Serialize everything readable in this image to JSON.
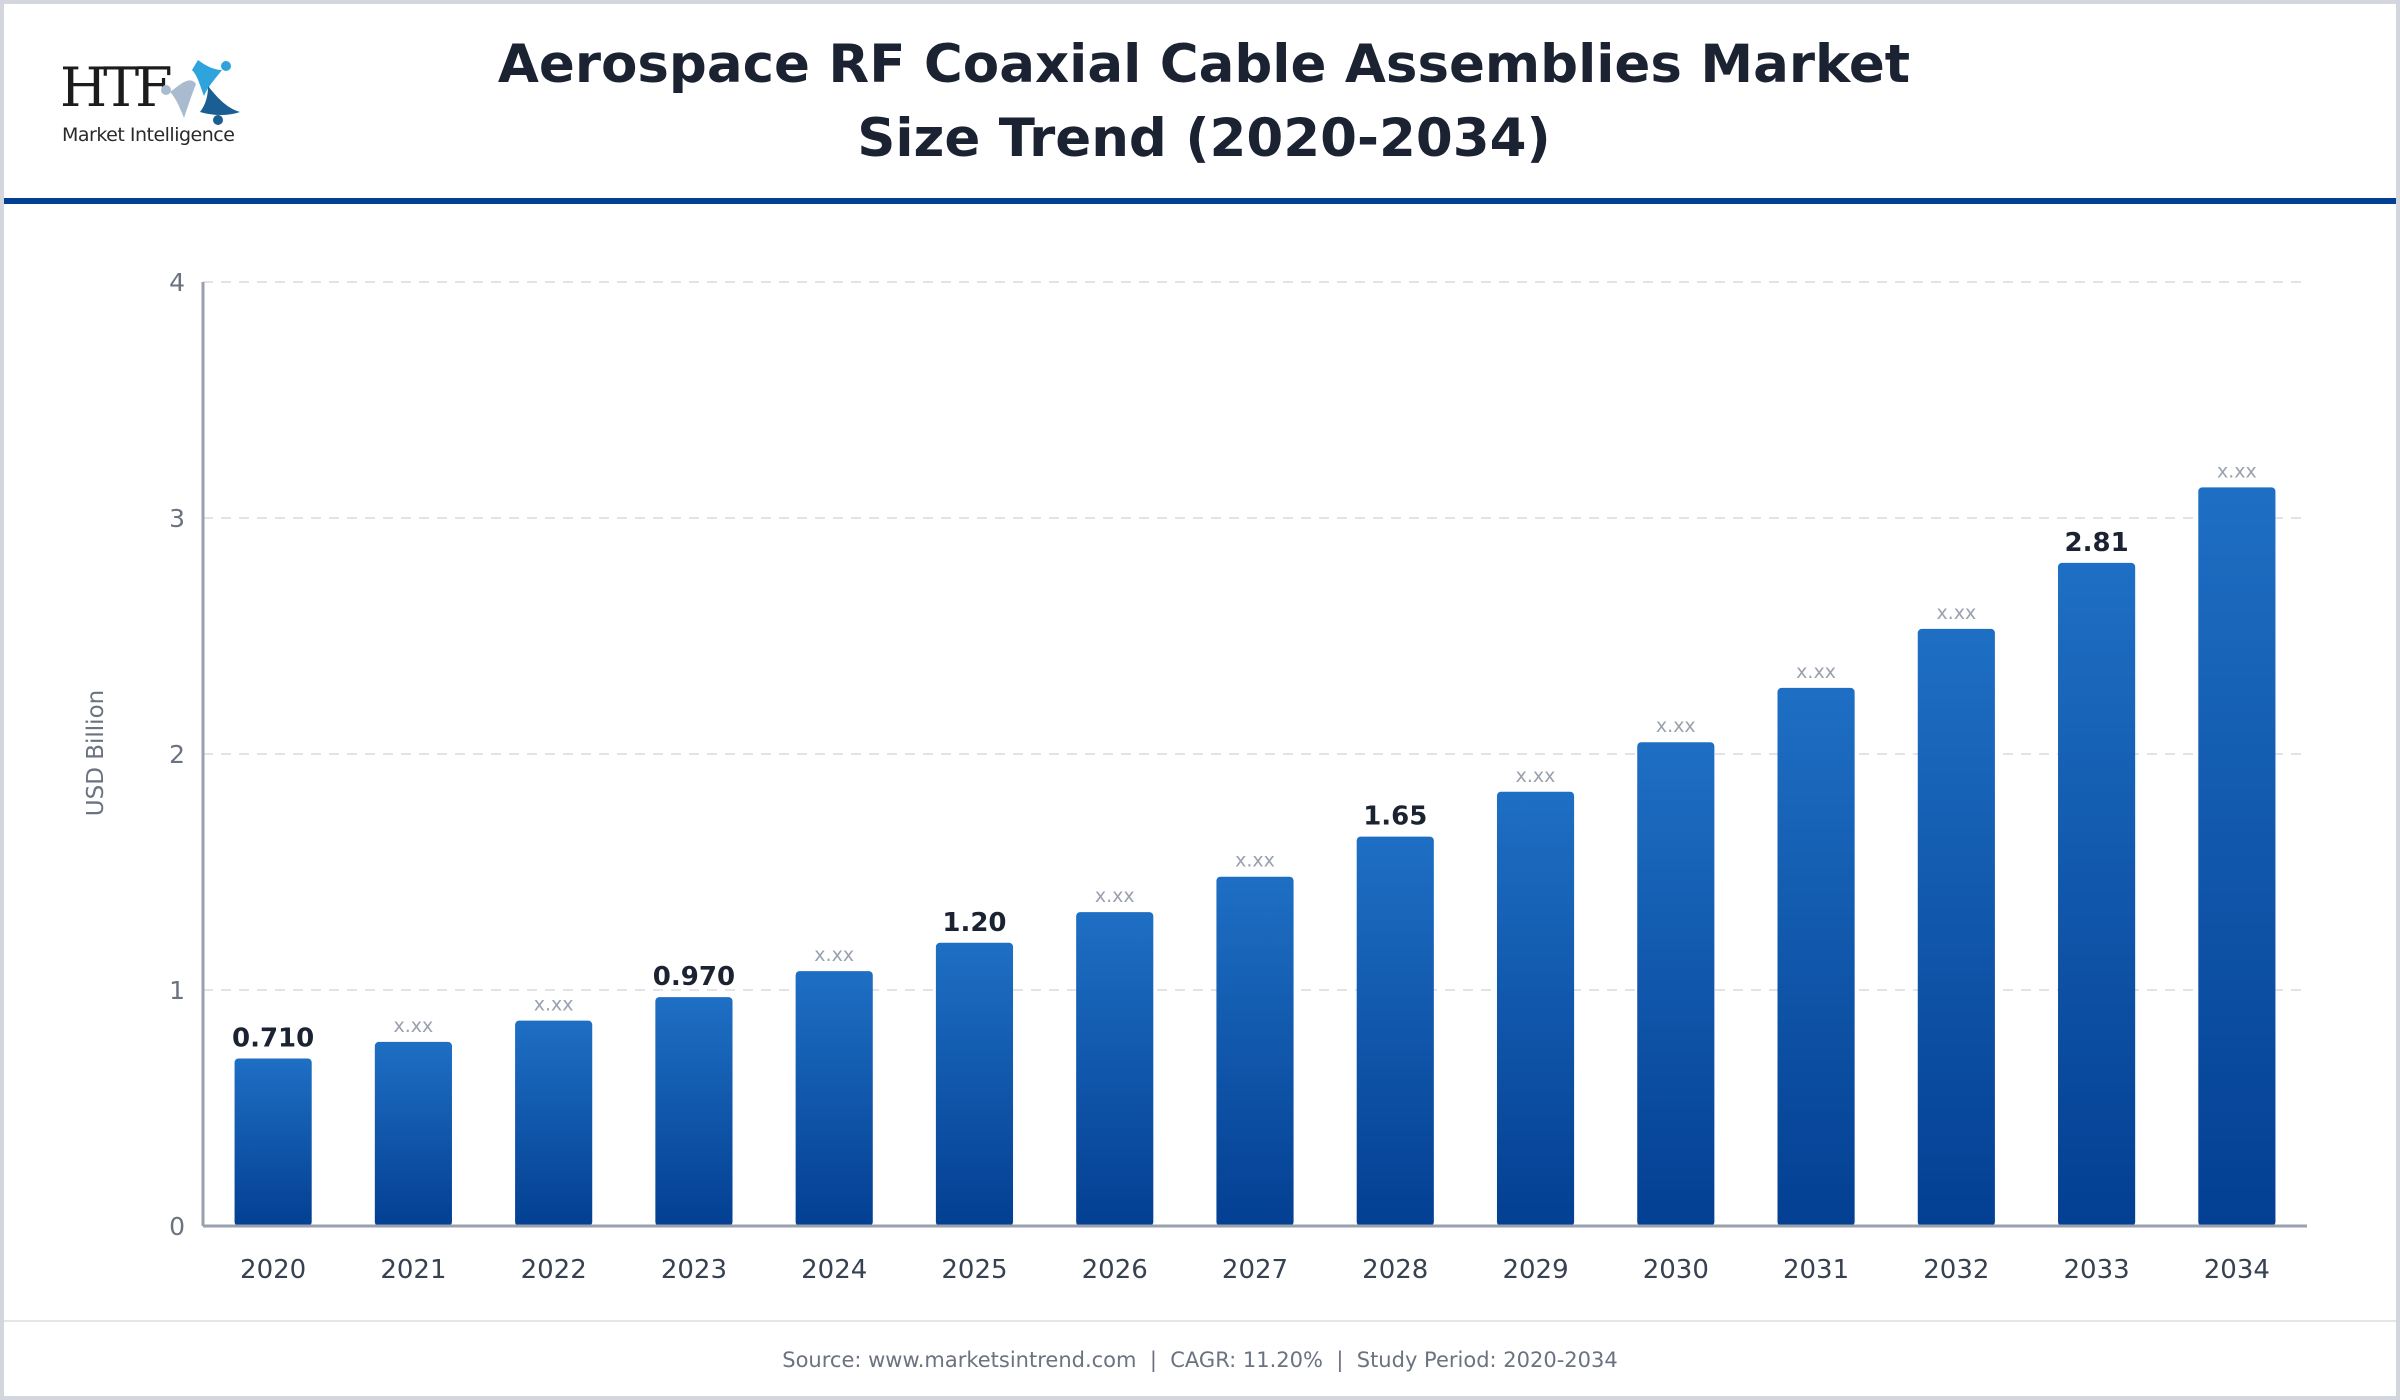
{
  "header": {
    "logo": {
      "name": "HTF",
      "subtitle": "Market Intelligence"
    },
    "title_line1": "Aerospace RF Coaxial Cable Assemblies Market",
    "title_line2": "Size Trend (2020-2034)"
  },
  "colors": {
    "accent": "#033f92",
    "bar_top": "#1e6fc4",
    "bar_bottom": "#033f92",
    "axis": "#9aa1ae",
    "grid": "#e2e4e9",
    "label_bold": "#1b2232",
    "label_placeholder": "#9aa1ae",
    "tick_text": "#6b7280",
    "category_text": "#374151"
  },
  "chart_data": {
    "type": "bar",
    "title": "Aerospace RF Coaxial Cable Assemblies Market Size Trend (2020-2034)",
    "xlabel": "",
    "ylabel": "USD Billion",
    "ylim": [
      0,
      4
    ],
    "yticks": [
      0,
      1,
      2,
      3,
      4
    ],
    "grid": true,
    "legend": "none",
    "categories": [
      "2020",
      "2021",
      "2022",
      "2023",
      "2024",
      "2025",
      "2026",
      "2027",
      "2028",
      "2029",
      "2030",
      "2031",
      "2032",
      "2033",
      "2034"
    ],
    "values": [
      0.71,
      0.78,
      0.87,
      0.97,
      1.08,
      1.2,
      1.33,
      1.48,
      1.65,
      1.84,
      2.05,
      2.28,
      2.53,
      2.81,
      3.13
    ],
    "data_labels": [
      "0.710",
      "x.xx",
      "x.xx",
      "0.970",
      "x.xx",
      "1.20",
      "x.xx",
      "x.xx",
      "1.65",
      "x.xx",
      "x.xx",
      "x.xx",
      "x.xx",
      "2.81",
      "x.xx"
    ],
    "highlighted": [
      true,
      false,
      false,
      true,
      false,
      true,
      false,
      false,
      true,
      false,
      false,
      false,
      false,
      true,
      false
    ]
  },
  "footer": {
    "text": "Source: www.marketsintrend.com  |  CAGR: 11.20%  |  Study Period: 2020-2034"
  }
}
